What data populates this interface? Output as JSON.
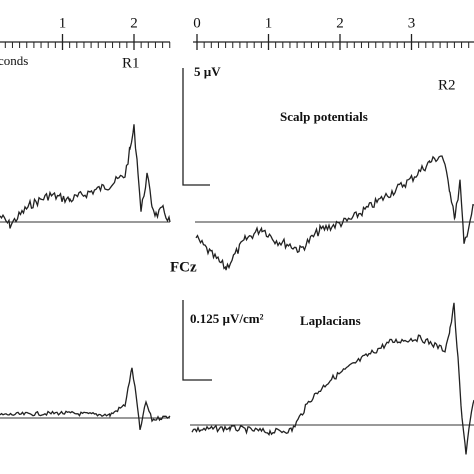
{
  "chart_data": {
    "type": "eeg",
    "left_axis": {
      "xticks": [
        1,
        2
      ],
      "label": "conds",
      "marker": "R1"
    },
    "right_axis": {
      "xticks": [
        0,
        1,
        2,
        3
      ],
      "marker": "R2"
    },
    "scale_top": "5 µV",
    "top_title": "Scalp potentials",
    "channel": "FCz",
    "scale_bottom": "0.125 µV/cm²",
    "bottom_title": "Laplacians"
  }
}
